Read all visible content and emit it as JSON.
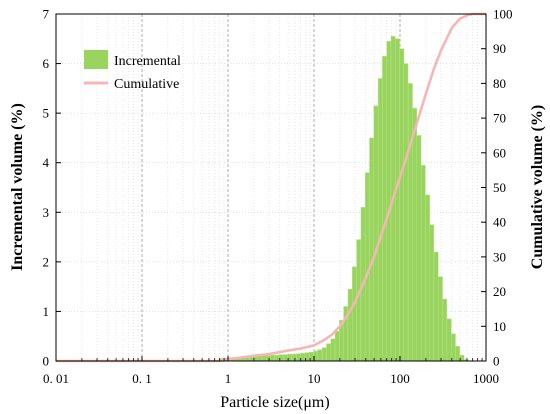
{
  "chart_data": {
    "type": "bar",
    "xscale": "log",
    "xlabel": "Particle size(μm)",
    "ylabel": "Incremental volume (%)",
    "y2label": "Cumulative volume (%)",
    "xlim": [
      0.01,
      1000
    ],
    "ylim": [
      0,
      7
    ],
    "y2lim": [
      0,
      100
    ],
    "xticks": [
      "0. 01",
      "0. 1",
      "1",
      "10",
      "100",
      "1000"
    ],
    "yticks": [
      "0",
      "1",
      "2",
      "3",
      "4",
      "5",
      "6",
      "7"
    ],
    "y2ticks": [
      "0",
      "10",
      "20",
      "30",
      "40",
      "50",
      "60",
      "70",
      "80",
      "90",
      "100"
    ],
    "grid": true,
    "legend_position": "top-left",
    "colors": {
      "incremental": "#99d55e",
      "cumulative": "#f4b6b6"
    },
    "series": [
      {
        "name": "Incremental",
        "type": "bar",
        "x": [
          0.83,
          0.93,
          1.05,
          1.17,
          1.32,
          1.48,
          1.66,
          1.86,
          2.09,
          2.34,
          2.63,
          2.95,
          3.31,
          3.72,
          4.17,
          4.68,
          5.25,
          5.89,
          6.61,
          7.41,
          8.32,
          9.33,
          10.5,
          11.7,
          13.2,
          14.8,
          16.6,
          18.6,
          20.9,
          23.4,
          26.3,
          29.5,
          33.1,
          37.2,
          41.7,
          46.8,
          52.5,
          58.9,
          66.1,
          74.1,
          83.2,
          93.3,
          105,
          117,
          132,
          148,
          166,
          186,
          209,
          234,
          263,
          295,
          331,
          372,
          417,
          468,
          525,
          589
        ],
        "values": [
          0.05,
          0.06,
          0.07,
          0.07,
          0.08,
          0.08,
          0.09,
          0.09,
          0.1,
          0.1,
          0.11,
          0.11,
          0.12,
          0.12,
          0.13,
          0.13,
          0.14,
          0.14,
          0.15,
          0.16,
          0.17,
          0.18,
          0.2,
          0.23,
          0.27,
          0.35,
          0.45,
          0.6,
          0.82,
          1.1,
          1.45,
          1.9,
          2.45,
          3.1,
          3.8,
          4.5,
          5.15,
          5.7,
          6.15,
          6.45,
          6.55,
          6.5,
          6.3,
          6.0,
          5.6,
          5.1,
          4.55,
          3.95,
          3.35,
          2.75,
          2.2,
          1.7,
          1.25,
          0.85,
          0.55,
          0.3,
          0.12,
          0.03
        ]
      },
      {
        "name": "Cumulative",
        "type": "line",
        "x": [
          0.01,
          0.8,
          1,
          2,
          3,
          5,
          7,
          10,
          13,
          16,
          20,
          25,
          30,
          40,
          50,
          60,
          70,
          80,
          90,
          100,
          120,
          150,
          200,
          250,
          300,
          400,
          500,
          600,
          700,
          800,
          1000
        ],
        "values": [
          0,
          0,
          0.5,
          1.5,
          2,
          3,
          3.6,
          4.5,
          6,
          7.5,
          10,
          13.5,
          17,
          24,
          30,
          36,
          41,
          45.5,
          49.5,
          53,
          59,
          67,
          77,
          84.5,
          89.5,
          96,
          98.7,
          99.6,
          100,
          100,
          100
        ]
      }
    ]
  }
}
